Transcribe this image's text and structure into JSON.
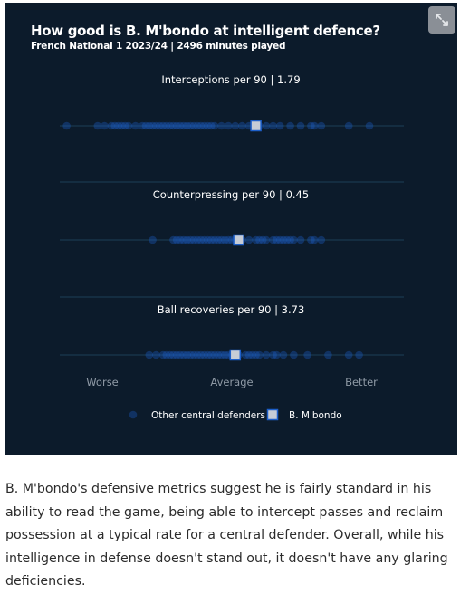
{
  "header": {
    "title": "How good is B. M'bondo at intelligent defence?",
    "subtitle": "French National 1 2023/24 | 2496 minutes played"
  },
  "icons": {
    "expand": "expand-arrows-icon"
  },
  "colors": {
    "background": "#0c1b2b",
    "dot": "#1d5fc9",
    "player_fill": "#c6ccd6",
    "player_stroke": "#1d5fc9",
    "axis_line": "#1b3f57",
    "text": "#ffffff",
    "muted_text": "#8f9aa6"
  },
  "chart_data": {
    "type": "scatter",
    "scale": "percentile",
    "xlim": [
      0,
      100
    ],
    "scale_labels": [
      "Worse",
      "Average",
      "Better"
    ],
    "metrics": [
      {
        "label": "Interceptions per 90 | 1.79",
        "player_percentile": 57,
        "others_percentile": [
          2,
          11,
          13,
          15,
          16,
          17,
          18,
          19,
          20,
          22,
          24,
          25,
          26,
          27,
          28,
          29,
          30,
          31,
          32,
          33,
          34,
          35,
          36,
          37,
          38,
          39,
          40,
          41,
          42,
          43,
          44,
          45,
          47,
          49,
          51,
          53,
          55,
          58,
          60,
          62,
          64,
          67,
          70,
          73,
          74,
          76,
          84,
          90
        ]
      },
      {
        "label": "Counterpressing per 90 | 0.45",
        "player_percentile": 52,
        "others_percentile": [
          27,
          33,
          34,
          35,
          36,
          37,
          38,
          39,
          40,
          41,
          42,
          43,
          44,
          45,
          46,
          47,
          48,
          49,
          50,
          51,
          53,
          55,
          57,
          58,
          59,
          60,
          62,
          63,
          64,
          65,
          66,
          67,
          68,
          70,
          73,
          74,
          76
        ]
      },
      {
        "label": "Ball recoveries per 90 | 3.73",
        "player_percentile": 51,
        "others_percentile": [
          26,
          28,
          30,
          31,
          32,
          33,
          34,
          35,
          36,
          37,
          38,
          39,
          40,
          41,
          42,
          43,
          44,
          45,
          46,
          47,
          48,
          49,
          50,
          52,
          54,
          55,
          56,
          57,
          58,
          60,
          62,
          63,
          65,
          68,
          72,
          78,
          84,
          87
        ]
      }
    ]
  },
  "legend": {
    "others_label": "Other central defenders",
    "player_label": "B. M'bondo"
  },
  "caption": "B. M'bondo's defensive metrics suggest he is fairly standard in his ability to read the game, being able to intercept passes and reclaim possession at a typical rate for a central defender. Overall, while his intelligence in defense doesn't stand out, it doesn't have any glaring deficiencies."
}
